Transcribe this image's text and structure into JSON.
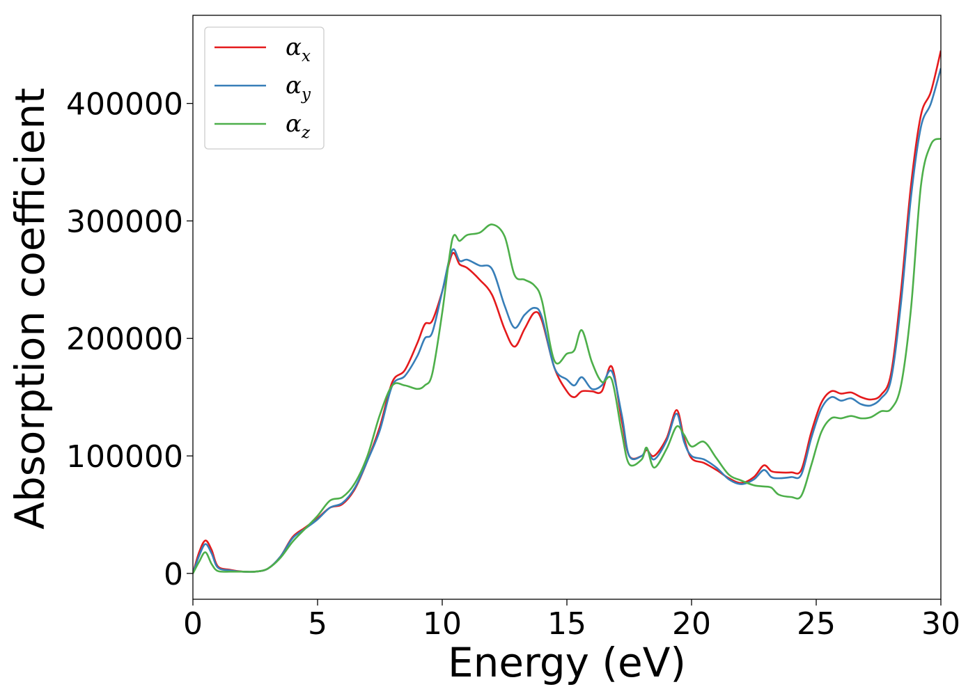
{
  "chart_data": {
    "type": "line",
    "xlabel": "Energy (eV)",
    "ylabel": "Absorption coefficient",
    "xlim": [
      0,
      30
    ],
    "ylim": [
      -22000,
      475000
    ],
    "xticks": [
      0,
      5,
      10,
      15,
      20,
      25,
      30
    ],
    "yticks": [
      0,
      100000,
      200000,
      300000,
      400000
    ],
    "grid": false,
    "legend_position": "top-left",
    "series": [
      {
        "name": "α_x",
        "symbol": "α",
        "subscript": "x",
        "color": "#e41a1c",
        "x": [
          0,
          0.25,
          0.5,
          0.75,
          1.0,
          1.5,
          2.0,
          2.5,
          3.0,
          3.5,
          4.0,
          4.5,
          5.0,
          5.5,
          6.0,
          6.5,
          7.0,
          7.5,
          8.0,
          8.5,
          9.0,
          9.3,
          9.6,
          10.0,
          10.4,
          10.7,
          11.0,
          11.5,
          12.0,
          12.5,
          12.9,
          13.3,
          13.7,
          14.0,
          14.5,
          15.0,
          15.3,
          15.6,
          16.0,
          16.4,
          16.8,
          17.2,
          17.5,
          18.0,
          18.2,
          18.5,
          19.0,
          19.4,
          19.7,
          20.0,
          20.5,
          21.0,
          21.5,
          22.0,
          22.5,
          22.9,
          23.2,
          23.5,
          24.0,
          24.4,
          24.8,
          25.2,
          25.6,
          26.0,
          26.4,
          26.8,
          27.2,
          27.6,
          28.0,
          28.4,
          28.8,
          29.2,
          29.6,
          30.0
        ],
        "y": [
          0,
          18000,
          28000,
          20000,
          6000,
          3000,
          1500,
          1500,
          4000,
          14000,
          31000,
          39000,
          47000,
          56000,
          59000,
          72000,
          96000,
          125000,
          163000,
          173000,
          196000,
          212000,
          215000,
          240000,
          272000,
          263000,
          260000,
          250000,
          237000,
          208000,
          193000,
          208000,
          222000,
          215000,
          175000,
          155000,
          150000,
          155000,
          155000,
          155000,
          176000,
          130000,
          100000,
          100000,
          105000,
          100000,
          115000,
          139000,
          115000,
          98000,
          94000,
          88000,
          81000,
          77000,
          82000,
          92000,
          87000,
          86000,
          86000,
          88000,
          120000,
          145000,
          155000,
          153000,
          154000,
          150000,
          148000,
          152000,
          170000,
          240000,
          330000,
          390000,
          410000,
          445000
        ]
      },
      {
        "name": "α_y",
        "symbol": "α",
        "subscript": "y",
        "color": "#377eb8",
        "x": [
          0,
          0.25,
          0.5,
          0.75,
          1.0,
          1.5,
          2.0,
          2.5,
          3.0,
          3.5,
          4.0,
          4.5,
          5.0,
          5.5,
          6.0,
          6.5,
          7.0,
          7.5,
          8.0,
          8.5,
          9.0,
          9.3,
          9.6,
          10.0,
          10.4,
          10.7,
          11.0,
          11.5,
          12.0,
          12.5,
          12.9,
          13.3,
          13.7,
          14.0,
          14.5,
          15.0,
          15.3,
          15.6,
          16.0,
          16.4,
          16.8,
          17.2,
          17.5,
          18.0,
          18.2,
          18.5,
          19.0,
          19.4,
          19.7,
          20.0,
          20.5,
          21.0,
          21.5,
          22.0,
          22.5,
          22.9,
          23.2,
          23.5,
          24.0,
          24.4,
          24.8,
          25.2,
          25.6,
          26.0,
          26.4,
          26.8,
          27.2,
          27.6,
          28.0,
          28.4,
          28.8,
          29.2,
          29.6,
          30.0
        ],
        "y": [
          0,
          15000,
          25000,
          17000,
          5000,
          2500,
          1500,
          1500,
          4000,
          14000,
          30000,
          38000,
          46000,
          56000,
          60000,
          73000,
          96000,
          122000,
          160000,
          168000,
          185000,
          200000,
          205000,
          240000,
          275000,
          266000,
          267000,
          262000,
          259000,
          228000,
          209000,
          220000,
          226000,
          218000,
          175000,
          165000,
          160000,
          167000,
          157000,
          160000,
          172000,
          135000,
          100000,
          100000,
          106000,
          97000,
          113000,
          136000,
          112000,
          100000,
          97000,
          90000,
          80000,
          76000,
          80000,
          88000,
          82000,
          81000,
          82000,
          84000,
          115000,
          140000,
          150000,
          147000,
          149000,
          144000,
          143000,
          149000,
          165000,
          230000,
          320000,
          380000,
          400000,
          430000
        ]
      },
      {
        "name": "α_z",
        "symbol": "α",
        "subscript": "z",
        "color": "#4daf4a",
        "x": [
          0,
          0.25,
          0.5,
          0.75,
          1.0,
          1.5,
          2.0,
          2.5,
          3.0,
          3.5,
          4.0,
          4.5,
          5.0,
          5.5,
          6.0,
          6.5,
          7.0,
          7.5,
          8.0,
          8.5,
          9.0,
          9.3,
          9.6,
          10.0,
          10.4,
          10.7,
          11.0,
          11.5,
          12.0,
          12.5,
          12.9,
          13.3,
          13.7,
          14.0,
          14.5,
          15.0,
          15.3,
          15.6,
          16.0,
          16.4,
          16.8,
          17.2,
          17.5,
          18.0,
          18.2,
          18.5,
          19.0,
          19.4,
          19.7,
          20.0,
          20.5,
          21.0,
          21.5,
          22.0,
          22.5,
          22.9,
          23.2,
          23.5,
          24.0,
          24.4,
          24.8,
          25.2,
          25.6,
          26.0,
          26.4,
          26.8,
          27.2,
          27.6,
          28.0,
          28.4,
          28.8,
          29.2,
          29.6,
          30.0
        ],
        "y": [
          0,
          10000,
          18000,
          8000,
          2000,
          1500,
          1500,
          1500,
          4000,
          13000,
          27000,
          38000,
          49000,
          62000,
          65000,
          77000,
          100000,
          135000,
          160000,
          160000,
          157000,
          160000,
          170000,
          222000,
          284000,
          283000,
          288000,
          290000,
          297000,
          287000,
          254000,
          250000,
          245000,
          232000,
          181000,
          187000,
          190000,
          207000,
          180000,
          163000,
          165000,
          120000,
          93000,
          97000,
          107000,
          90000,
          106000,
          125000,
          118000,
          108000,
          112000,
          98000,
          84000,
          79000,
          75000,
          74000,
          73000,
          67000,
          65000,
          66000,
          92000,
          120000,
          132000,
          132000,
          134000,
          132000,
          133000,
          138000,
          140000,
          160000,
          225000,
          330000,
          365000,
          370000
        ]
      }
    ]
  }
}
